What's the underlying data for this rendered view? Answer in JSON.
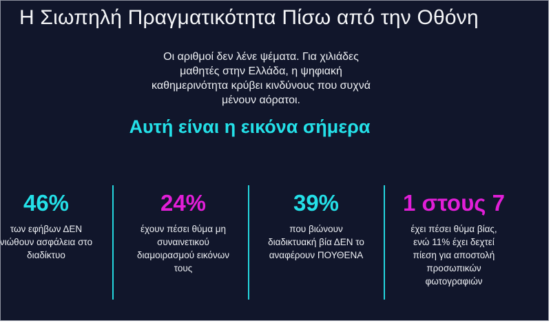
{
  "title": "Η Σιωπηλή Πραγματικότητα Πίσω από την Οθόνη",
  "intro_lines": [
    "Οι αριθμοί δεν λένε ψέματα. Για χιλιάδες",
    "μαθητές στην Ελλάδα, η ψηφιακή",
    "καθημερινότητα κρύβει κινδύνους που συχνά",
    "μένουν αόρατοι."
  ],
  "subheading": "Αυτή είναι η εικόνα σήμερα",
  "colors": {
    "background": "#11162b",
    "cyan": "#24e0e8",
    "magenta": "#e21ed8",
    "text": "#eef0f4"
  },
  "stats": [
    {
      "value": "46%",
      "lines": [
        "των εφήβων ΔΕΝ",
        "νιώθουν ασφάλεια στο",
        "διαδίκτυο"
      ]
    },
    {
      "value": "24%",
      "lines": [
        "έχουν πέσει θύμα μη",
        "συναινετικού",
        "διαμοιρασμού εικόνων",
        "τους"
      ]
    },
    {
      "value": "39%",
      "lines": [
        "που βιώνουν",
        "διαδικτυακή βία ΔΕΝ το",
        "αναφέρουν ΠΟΥΘΕΝΑ"
      ]
    },
    {
      "value": "1 στους 7",
      "lines": [
        "έχει πέσει θύμα βίας,",
        "ενώ 11% έχει δεχτεί",
        "πίεση για αποστολή",
        "προσωπικών",
        "φωτογραφιών"
      ]
    }
  ]
}
